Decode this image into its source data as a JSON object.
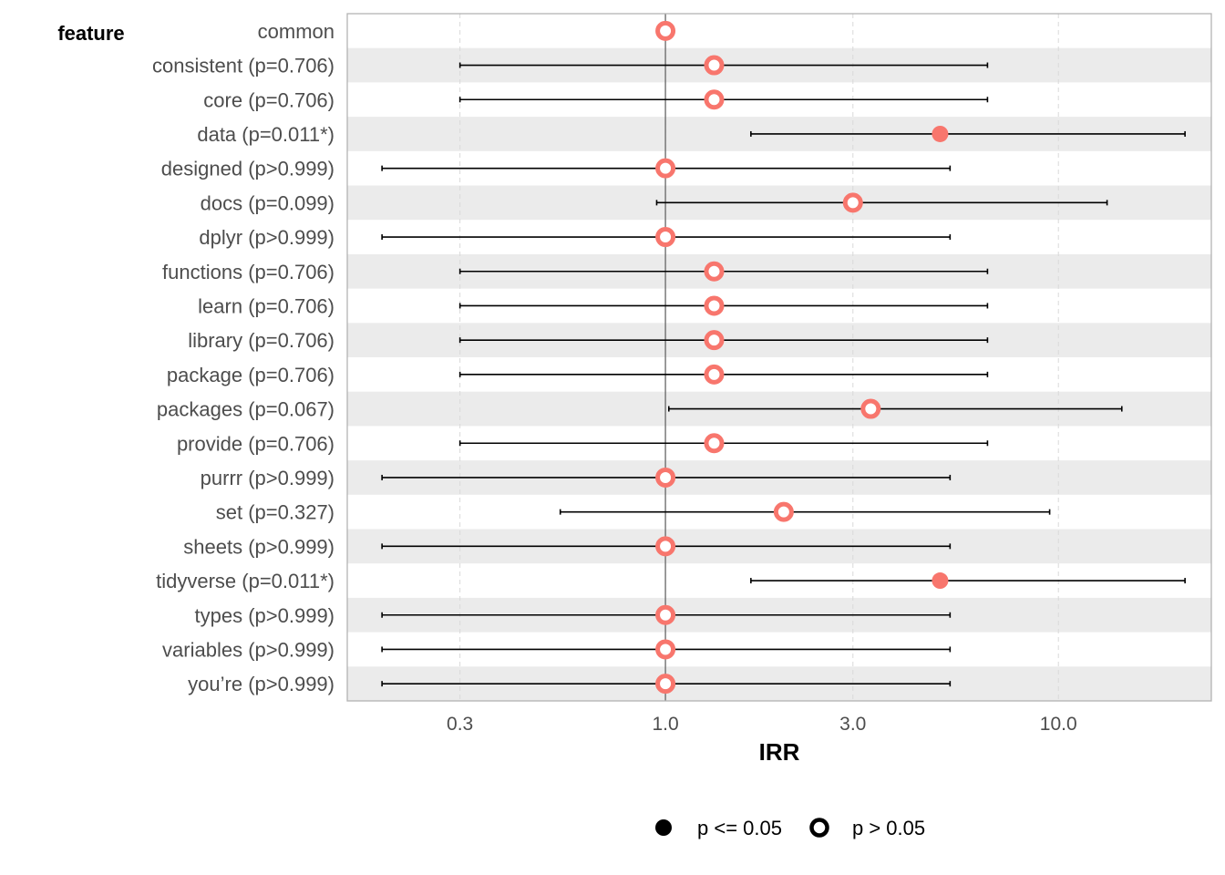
{
  "chart_data": {
    "type": "scatter",
    "subtype": "forest-plot",
    "title": "",
    "ylabel": "feature",
    "xlabel": "IRR",
    "x_scale": "log",
    "xlim": [
      0.155,
      24.5
    ],
    "reference_line": 1.0,
    "xticks": [
      {
        "value": 0.3,
        "label": "0.3"
      },
      {
        "value": 1.0,
        "label": "1.0"
      },
      {
        "value": 3.0,
        "label": "3.0"
      },
      {
        "value": 10.0,
        "label": "10.0"
      }
    ],
    "grid": "vertical dashed at ticks, alternating grey row bands",
    "legend": {
      "position": "bottom",
      "items": [
        {
          "label": "p <= 0.05",
          "marker": "filled-circle"
        },
        {
          "label": "p > 0.05",
          "marker": "hollow-circle"
        }
      ]
    },
    "point_color": "#f8766d",
    "rows": [
      {
        "label": "common",
        "irr": 1.0,
        "lo": null,
        "hi": null,
        "significant": false
      },
      {
        "label": "consistent (p=0.706)",
        "irr": 1.33,
        "lo": 0.3,
        "hi": 6.6,
        "significant": false
      },
      {
        "label": "core (p=0.706)",
        "irr": 1.33,
        "lo": 0.3,
        "hi": 6.6,
        "significant": false
      },
      {
        "label": "data (p=0.011*)",
        "irr": 5.0,
        "lo": 1.65,
        "hi": 21.0,
        "significant": true
      },
      {
        "label": "designed (p>0.999)",
        "irr": 1.0,
        "lo": 0.19,
        "hi": 5.3,
        "significant": false
      },
      {
        "label": "docs (p=0.099)",
        "irr": 3.0,
        "lo": 0.95,
        "hi": 13.3,
        "significant": false
      },
      {
        "label": "dplyr (p>0.999)",
        "irr": 1.0,
        "lo": 0.19,
        "hi": 5.3,
        "significant": false
      },
      {
        "label": "functions (p=0.706)",
        "irr": 1.33,
        "lo": 0.3,
        "hi": 6.6,
        "significant": false
      },
      {
        "label": "learn (p=0.706)",
        "irr": 1.33,
        "lo": 0.3,
        "hi": 6.6,
        "significant": false
      },
      {
        "label": "library (p=0.706)",
        "irr": 1.33,
        "lo": 0.3,
        "hi": 6.6,
        "significant": false
      },
      {
        "label": "package (p=0.706)",
        "irr": 1.33,
        "lo": 0.3,
        "hi": 6.6,
        "significant": false
      },
      {
        "label": "packages (p=0.067)",
        "irr": 3.33,
        "lo": 1.02,
        "hi": 14.5,
        "significant": false
      },
      {
        "label": "provide (p=0.706)",
        "irr": 1.33,
        "lo": 0.3,
        "hi": 6.6,
        "significant": false
      },
      {
        "label": "purrr (p>0.999)",
        "irr": 1.0,
        "lo": 0.19,
        "hi": 5.3,
        "significant": false
      },
      {
        "label": "set (p=0.327)",
        "irr": 2.0,
        "lo": 0.54,
        "hi": 9.5,
        "significant": false
      },
      {
        "label": "sheets (p>0.999)",
        "irr": 1.0,
        "lo": 0.19,
        "hi": 5.3,
        "significant": false
      },
      {
        "label": "tidyverse (p=0.011*)",
        "irr": 5.0,
        "lo": 1.65,
        "hi": 21.0,
        "significant": true
      },
      {
        "label": "types (p>0.999)",
        "irr": 1.0,
        "lo": 0.19,
        "hi": 5.3,
        "significant": false
      },
      {
        "label": "variables (p>0.999)",
        "irr": 1.0,
        "lo": 0.19,
        "hi": 5.3,
        "significant": false
      },
      {
        "label": "you’re (p>0.999)",
        "irr": 1.0,
        "lo": 0.19,
        "hi": 5.3,
        "significant": false
      }
    ]
  }
}
